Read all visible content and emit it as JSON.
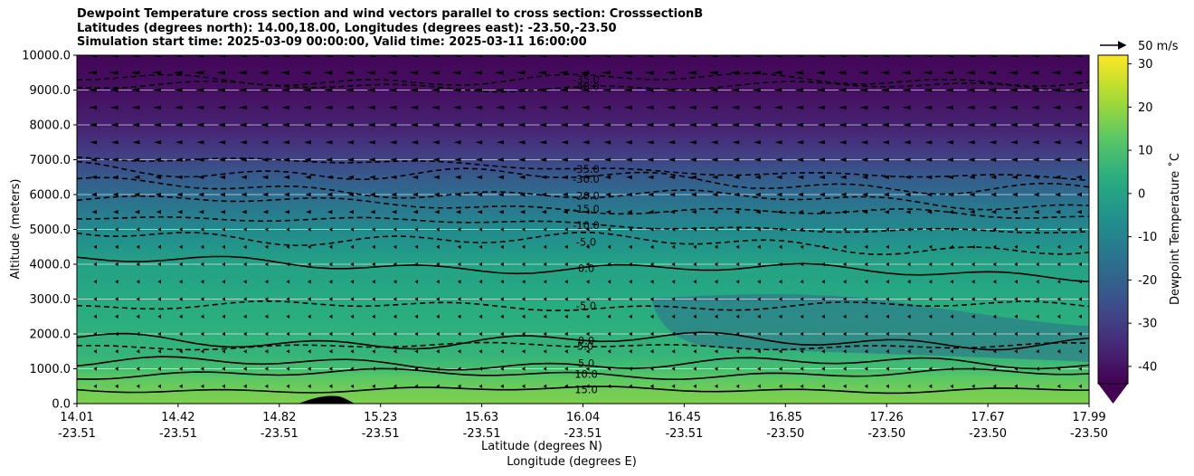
{
  "chart_data": {
    "type": "heatmap",
    "title_lines": [
      "Dewpoint Temperature cross section and wind vectors parallel to cross section: CrosssectionB",
      "Latitudes (degrees north): 14.00,18.00, Longitudes (degrees east): -23.50,-23.50",
      "Simulation start time: 2025-03-09 00:00:00, Valid time: 2025-03-11 16:00:00"
    ],
    "xlabel_lat": "Latitude (degrees N)",
    "xlabel_lon": "Longitude (degrees E)",
    "ylabel": "Altitude (meters)",
    "ylim": [
      0,
      10000
    ],
    "grid": true,
    "x_ticks": [
      {
        "lat": "14.01",
        "lon": "-23.51"
      },
      {
        "lat": "14.42",
        "lon": "-23.51"
      },
      {
        "lat": "14.82",
        "lon": "-23.51"
      },
      {
        "lat": "15.23",
        "lon": "-23.51"
      },
      {
        "lat": "15.63",
        "lon": "-23.51"
      },
      {
        "lat": "16.04",
        "lon": "-23.51"
      },
      {
        "lat": "16.45",
        "lon": "-23.51"
      },
      {
        "lat": "16.85",
        "lon": "-23.50"
      },
      {
        "lat": "17.26",
        "lon": "-23.50"
      },
      {
        "lat": "17.67",
        "lon": "-23.50"
      },
      {
        "lat": "17.99",
        "lon": "-23.50"
      }
    ],
    "y_ticks": [
      "0.0",
      "1000.0",
      "2000.0",
      "3000.0",
      "4000.0",
      "5000.0",
      "6000.0",
      "7000.0",
      "8000.0",
      "9000.0",
      "10000.0"
    ],
    "colorbar": {
      "label": "Dewpoint Temperature ˚C",
      "min": -44,
      "max": 32,
      "ticks": [
        "-40",
        "-30",
        "-20",
        "-10",
        "0",
        "10",
        "20",
        "30"
      ],
      "tick_values": [
        -40,
        -30,
        -20,
        -10,
        0,
        10,
        20,
        30
      ],
      "extend": "min",
      "colormap": "viridis"
    },
    "quiver_key": {
      "label": "50 m/s",
      "speed": 50
    },
    "profile": {
      "altitudes": [
        0,
        300,
        700,
        1000,
        1400,
        2000,
        2500,
        3000,
        3500,
        4000,
        4500,
        5000,
        5500,
        6000,
        6500,
        7000,
        7500,
        8000,
        8500,
        9000,
        10000
      ],
      "dewpoint": [
        17,
        16,
        13,
        9,
        6,
        5,
        4,
        3,
        1,
        0,
        -4,
        -8,
        -12,
        -17,
        -22,
        -28,
        -33,
        -37,
        -39,
        -41,
        -43
      ]
    },
    "contours": [
      {
        "label": "15.0",
        "altitude": 400
      },
      {
        "label": "10.0",
        "altitude": 850
      },
      {
        "label": "5.0",
        "altitude": 1150
      },
      {
        "label": "0.0",
        "altitude": 1800
      },
      {
        "label": "-5.0",
        "altitude": 1650
      },
      {
        "label": "-5.0",
        "altitude": 2800
      },
      {
        "label": "0.0",
        "altitude": 4100
      },
      {
        "label": "-5.0",
        "altitude": 4900
      },
      {
        "label": "-10.0",
        "altitude": 5400
      },
      {
        "label": "-15.0",
        "altitude": 5900
      },
      {
        "label": "-20.0",
        "altitude": 6300
      },
      {
        "label": "-30.0",
        "altitude": 6800
      },
      {
        "label": "-35.0",
        "altitude": 7100
      },
      {
        "label": "-40.0",
        "altitude": 9100
      },
      {
        "label": "-35.0",
        "altitude": 9300
      }
    ]
  }
}
